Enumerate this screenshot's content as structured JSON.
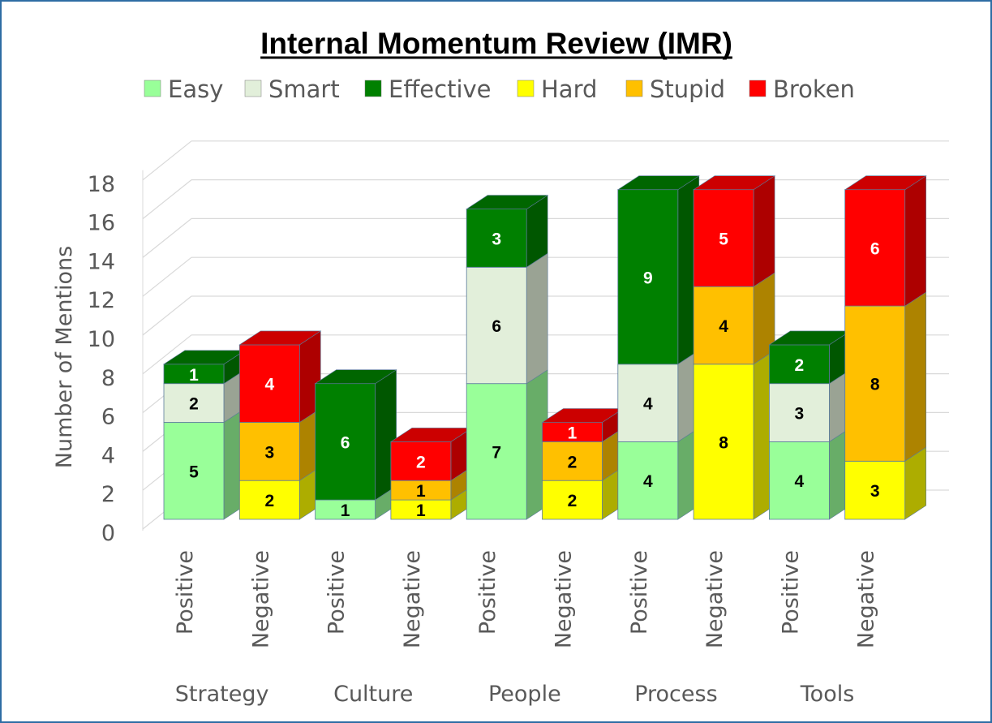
{
  "chart_data": {
    "type": "bar",
    "stacked": true,
    "style": "3d-stacked-column",
    "title": "Internal Momentum Review (IMR)",
    "ylabel": "Number of Mentions",
    "xlabel": "",
    "ylim": [
      0,
      18
    ],
    "yticks": [
      "0",
      "2",
      "4",
      "6",
      "8",
      "10",
      "12",
      "14",
      "16",
      "18"
    ],
    "grid": true,
    "legend_position": "top",
    "groups": [
      "Strategy",
      "Culture",
      "People",
      "Process",
      "Tools"
    ],
    "categories": [
      "Positive",
      "Negative",
      "Positive",
      "Negative",
      "Positive",
      "Negative",
      "Positive",
      "Negative",
      "Positive",
      "Negative"
    ],
    "series": [
      {
        "name": "Easy",
        "color": "#99ff99",
        "values": [
          5,
          0,
          1,
          0,
          7,
          0,
          4,
          0,
          4,
          0
        ]
      },
      {
        "name": "Smart",
        "color": "#e2efda",
        "values": [
          2,
          0,
          0,
          0,
          6,
          0,
          4,
          0,
          3,
          0
        ]
      },
      {
        "name": "Effective",
        "color": "#008000",
        "values": [
          1,
          0,
          6,
          0,
          3,
          0,
          9,
          0,
          2,
          0
        ]
      },
      {
        "name": "Hard",
        "color": "#ffff00",
        "values": [
          0,
          2,
          0,
          1,
          0,
          2,
          0,
          8,
          0,
          3
        ]
      },
      {
        "name": "Stupid",
        "color": "#ffc000",
        "values": [
          0,
          3,
          0,
          1,
          0,
          2,
          0,
          4,
          0,
          8
        ]
      },
      {
        "name": "Broken",
        "color": "#ff0000",
        "values": [
          0,
          4,
          0,
          2,
          0,
          1,
          0,
          5,
          0,
          6
        ]
      }
    ]
  }
}
